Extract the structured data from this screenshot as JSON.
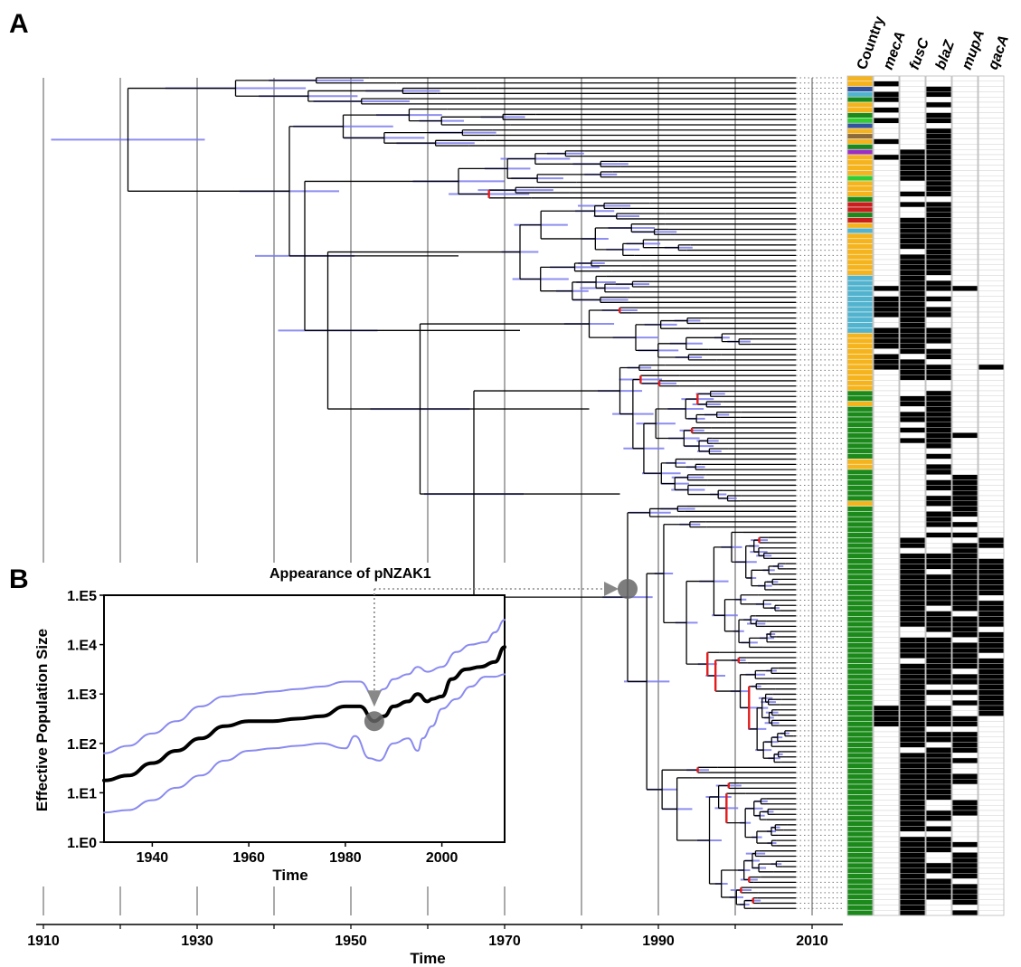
{
  "panels": {
    "a": "A",
    "b": "B"
  },
  "tree": {
    "x_ticks": [
      "1910",
      "1930",
      "1950",
      "1970",
      "1990",
      "2010"
    ],
    "x_tick_years": [
      1910,
      1930,
      1950,
      1970,
      1990,
      2010
    ],
    "x_label": "Time",
    "gridlines_years": [
      1910,
      1920,
      1930,
      1940,
      1950,
      1960,
      1970,
      1980,
      1990,
      2000,
      2010
    ],
    "annotation": "Appearance of pNZAK1",
    "annotated_node_year": 1986
  },
  "heatmap": {
    "columns": [
      {
        "label": "Country",
        "italic": false
      },
      {
        "label": "mecA",
        "italic": true
      },
      {
        "label": "fusC",
        "italic": true
      },
      {
        "label": "blaZ",
        "italic": true
      },
      {
        "label": "mupA",
        "italic": true
      },
      {
        "label": "qacA",
        "italic": true
      }
    ],
    "colors": {
      "green": "#1b8a1b",
      "orange": "#f5b41e",
      "teal": "#52b3cf",
      "red": "#c81e1e",
      "purple": "#9b2fc2",
      "lime": "#33cc33",
      "navy": "#33539e",
      "brown": "#8c6a3a",
      "present": "#000000",
      "absent": "#ffffff"
    }
  },
  "chart_data": {
    "type": "line",
    "xlabel": "Time",
    "ylabel": "Effective Population Size",
    "x_ticks": [
      "1940",
      "1960",
      "1980",
      "2000"
    ],
    "y_ticks": [
      "1.E0",
      "1.E1",
      "1.E2",
      "1.E3",
      "1.E4",
      "1.E5"
    ],
    "xlim": [
      1930,
      2013
    ],
    "ylim_log10": [
      0,
      5
    ],
    "y_scale": "log",
    "series": [
      {
        "role": "median",
        "x": [
          1930,
          1935,
          1940,
          1945,
          1950,
          1955,
          1960,
          1965,
          1970,
          1975,
          1980,
          1983,
          1986,
          1988,
          1990,
          1993,
          1995,
          1997,
          1998,
          2000,
          2002,
          2005,
          2008,
          2011,
          2013
        ],
        "log10_y": [
          1.25,
          1.35,
          1.6,
          1.85,
          2.1,
          2.35,
          2.45,
          2.45,
          2.5,
          2.55,
          2.75,
          2.75,
          2.45,
          2.55,
          2.75,
          2.85,
          3.0,
          2.85,
          2.9,
          2.95,
          3.3,
          3.5,
          3.55,
          3.65,
          3.95
        ]
      },
      {
        "role": "upper-95",
        "x": [
          1930,
          1935,
          1940,
          1945,
          1950,
          1955,
          1960,
          1965,
          1970,
          1975,
          1980,
          1983,
          1986,
          1988,
          1990,
          1993,
          1995,
          1997,
          2000,
          2003,
          2006,
          2009,
          2011,
          2013
        ],
        "log10_y": [
          1.8,
          1.95,
          2.2,
          2.45,
          2.75,
          2.95,
          3.0,
          3.05,
          3.1,
          3.15,
          3.25,
          3.25,
          2.95,
          3.1,
          3.3,
          3.4,
          3.55,
          3.45,
          3.55,
          3.85,
          4.0,
          4.05,
          4.25,
          4.5
        ]
      },
      {
        "role": "lower-95",
        "x": [
          1930,
          1935,
          1940,
          1945,
          1950,
          1955,
          1960,
          1965,
          1970,
          1975,
          1980,
          1982,
          1985,
          1987,
          1990,
          1993,
          1995,
          1996,
          1998,
          2000,
          2003,
          2006,
          2009,
          2011,
          2013
        ],
        "log10_y": [
          0.6,
          0.65,
          0.85,
          1.1,
          1.35,
          1.65,
          1.85,
          1.9,
          1.95,
          2.0,
          1.9,
          2.15,
          1.7,
          1.65,
          2.0,
          2.1,
          1.85,
          2.1,
          2.35,
          2.7,
          2.9,
          3.15,
          3.35,
          3.35,
          3.4
        ]
      }
    ],
    "marked_point": {
      "x": 1986,
      "log10_y": 2.45
    }
  }
}
